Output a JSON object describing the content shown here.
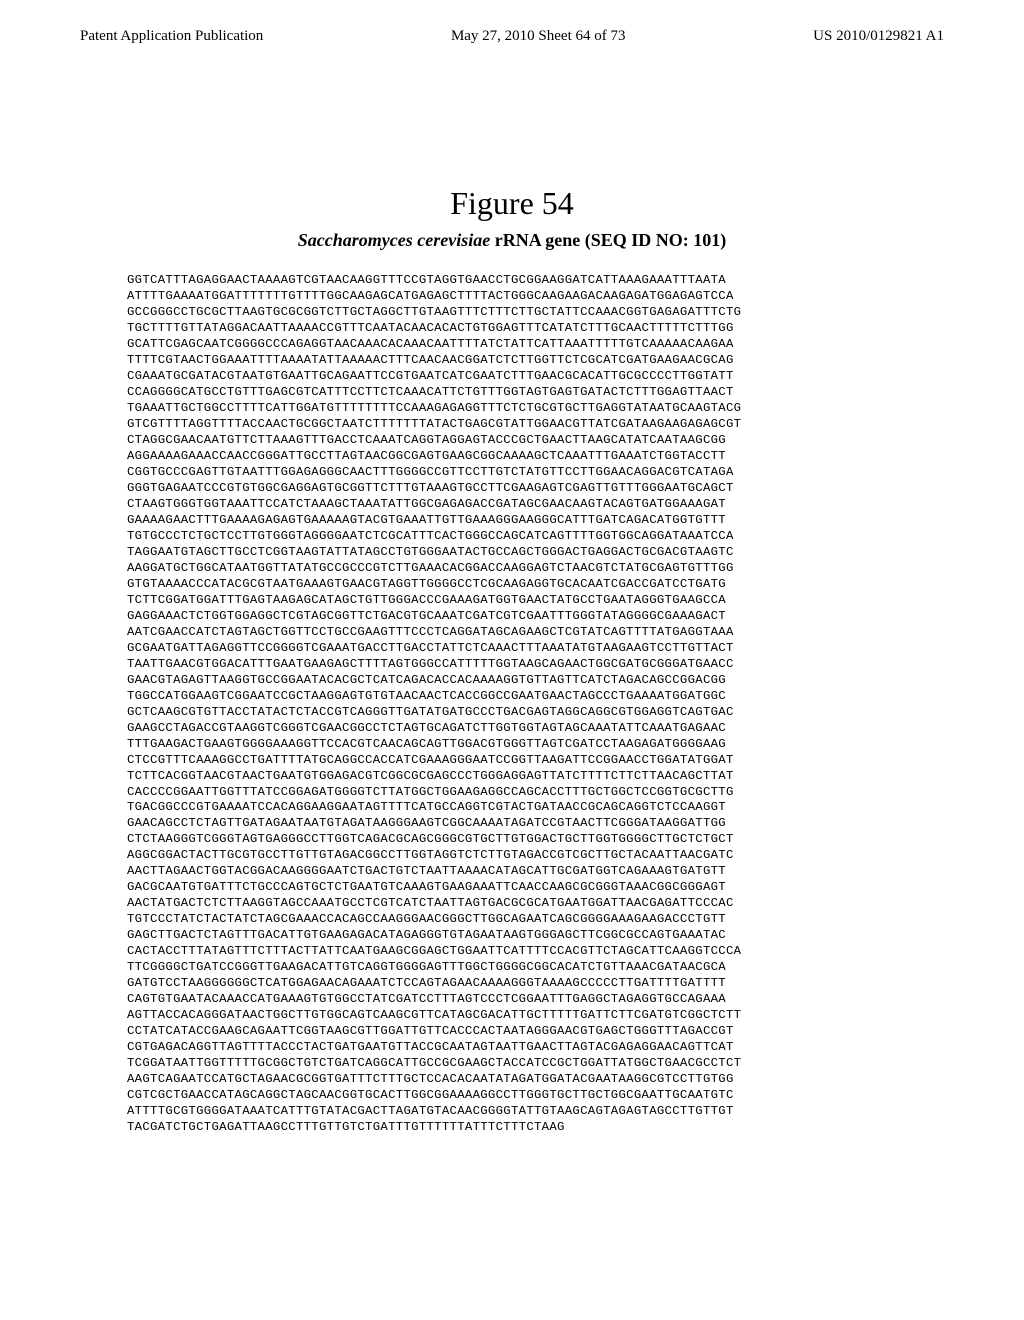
{
  "header": {
    "left": "Patent Application Publication",
    "center": "May 27, 2010  Sheet 64 of 73",
    "right": "US 2010/0129821 A1"
  },
  "figure": {
    "title": "Figure 54",
    "subtitle_italic": "Saccharomyces cerevisiae",
    "subtitle_rest": " rRNA gene (SEQ ID NO: 101)"
  },
  "sequence": "GGTCATTTAGAGGAACTAAAAGTCGTAACAAGGTTTCCGTAGGTGAACCTGCGGAAGGATCATTAAAGAAATTTAATA\nATTTTGAAAATGGATTTTTTTGTTTTGGCAAGAGCATGAGAGCTTTTACTGGGCAAGAAGACAAGAGATGGAGAGTCCA\nGCCGGGCCTGCGCTTAAGTGCGCGGTCTTGCTAGGCTTGTAAGTTTCTTTCTTGCTATTCCAAACGGTGAGAGATTTCTG\nTGCTTTTGTTATAGGACAATTAAAACCGTTTCAATACAACACACTGTGGAGTTTCATATCTTTGCAACTTTTTCTTTGG\nGCATTCGAGCAATCGGGGCCCAGAGGTAACAAACACAAACAATTTTATCTATTCATTAAATTTTTGTCAAAAACAAGAA\nTTTTCGTAACTGGAAATTTTAAAATATTAAAAACTTTCAACAACGGATCTCTTGGTTCTCGCATCGATGAAGAACGCAG\nCGAAATGCGATACGTAATGTGAATTGCAGAATTCCGTGAATCATCGAATCTTTGAACGCACATTGCGCCCCTTGGTATT\nCCAGGGGCATGCCTGTTTGAGCGTCATTTCCTTCTCAAACATTCTGTTTGGTAGTGAGTGATACTCTTTGGAGTTAACT\nTGAAATTGCTGGCCTTTTCATTGGATGTTTTTTTTCCAAAGAGAGGTTTCTCTGCGTGCTTGAGGTATAATGCAAGTACG\nGTCGTTTTAGGTTTTACCAACTGCGGCTAATCTTTTTTTATACTGAGCGTATTGGAACGTTATCGATAAGAAGAGAGCGT\nCTAGGCGAACAATGTTCTTAAAGTTTGACCTCAAATCAGGTAGGAGTACCCGCTGAACTTAAGCATATCAATAAGCGG\nAGGAAAAGAAACCAACCGGGATTGCCTTAGTAACGGCGAGTGAAGCGGCAAAAGCTCAAATTTGAAATCTGGTACCTT\nCGGTGCCCGAGTTGTAATTTGGAGAGGGCAACTTTGGGGCCGTTCCTTGTCTATGTTCCTTGGAACAGGACGTCATAGA\nGGGTGAGAATCCCGTGTGGCGAGGAGTGCGGTTCTTTGTAAAGTGCCTTCGAAGAGTCGAGTTGTTTGGGAATGCAGCT\nCTAAGTGGGTGGTAAATTCCATCTAAAGCTAAATATTGGCGAGAGACCGATAGCGAACAAGTACAGTGATGGAAAGAT\nGAAAAGAACTTTGAAAAGAGAGTGAAAAAGTACGTGAAATTGTTGAAAGGGAAGGGCATTTGATCAGACATGGTGTTT\nTGTGCCCTCTGCTCCTTGTGGGTAGGGGAATCTCGCATTTCACTGGGCCAGCATCAGTTTTGGTGGCAGGATAAATCCA\nTAGGAATGTAGCTTGCCTCGGTAAGTATTATAGCCTGTGGGAATACTGCCAGCTGGGACTGAGGACTGCGACGTAAGTC\nAAGGATGCTGGCATAATGGTTATATGCCGCCCGTCTTGAAACACGGACCAAGGAGTCTAACGTCTATGCGAGTGTTTGG\nGTGTAAAACCCATACGCGTAATGAAAGTGAACGTAGGTTGGGGCCTCGCAAGAGGTGCACAATCGACCGATCCTGATG\nTCTTCGGATGGATTTGAGTAAGAGCATAGCTGTTGGGACCCGAAAGATGGTGAACTATGCCTGAATAGGGTGAAGCCA\nGAGGAAACTCTGGTGGAGGCTCGTAGCGGTTCTGACGTGCAAATCGATCGTCGAATTTGGGTATAGGGGCGAAAGACT\nAATCGAACCATCTAGTAGCTGGTTCCTGCCGAAGTTTCCCTCAGGATAGCAGAAGCTCGTATCAGTTTTATGAGGTAAA\nGCGAATGATTAGAGGTTCCGGGGTCGAAATGACCTTGACCTATTCTCAAACTTTAAATATGTAAGAAGTCCTTGTTACT\nTAATTGAACGTGGACATTTGAATGAAGAGCTTTTAGTGGGCCATTTTTGGTAAGCAGAACTGGCGATGCGGGATGAACC\nGAACGTAGAGTTAAGGTGCCGGAATACACGCTCATCAGACACCACAAAAGGTGTTAGTTCATCTAGACAGCCGGACGG\nTGGCCATGGAAGTCGGAATCCGCTAAGGAGTGTGTAACAACTCACCGGCCGAATGAACTAGCCCTGAAAATGGATGGC\nGCTCAAGCGTGTTACCTATACTCTACCGTCAGGGTTGATATGATGCCCTGACGAGTAGGCAGGCGTGGAGGTCAGTGAC\nGAAGCCTAGACCGTAAGGTCGGGTCGAACGGCCTCTAGTGCAGATCTTGGTGGTAGTAGCAAATATTCAAATGAGAAC\nTTTGAAGACTGAAGTGGGGAAAGGTTCCACGTCAACAGCAGTTGGACGTGGGTTAGTCGATCCTAAGAGATGGGGAAG\nCTCCGTTTCAAAGGCCTGATTTTATGCAGGCCACCATCGAAAGGGAATCCGGTTAAGATTCCGGAACCTGGATATGGAT\nTCTTCACGGTAACGTAACTGAATGTGGAGACGTCGGCGCGAGCCCTGGGAGGAGTTATCTTTTCTTCTTAACAGCTTAT\nCACCCCGGAATTGGTTTATCCGGAGATGGGGTCTTATGGCTGGAAGAGGCCAGCACCTTTGCTGGCTCCGGTGCGCTTG\nTGACGGCCCGTGAAAATCCACAGGAAGGAATAGTTTTCATGCCAGGTCGTACTGATAACCGCAGCAGGTCTCCAAGGT\nGAACAGCCTCTAGTTGATAGAATAATGTAGATAAGGGAAGTCGGCAAAATAGATCCGTAACTTCGGGATAAGGATTGG\nCTCTAAGGGTCGGGTAGTGAGGGCCTTGGTCAGACGCAGCGGGCGTGCTTGTGGACTGCTTGGTGGGGCTTGCTCTGCT\nAGGCGGACTACTTGCGTGCCTTGTTGTAGACGGCCTTGGTAGGTCTCTTGTAGACCGTCGCTTGCTACAATTAACGATC\nAACTTAGAACTGGTACGGACAAGGGGAATCTGACTGTCTAATTAAAACATAGCATTGCGATGGTCAGAAAGTGATGTT\nGACGCAATGTGATTTCTGCCCAGTGCTCTGAATGTCAAAGTGAAGAAATTCAACCAAGCGCGGGTAAACGGCGGGAGT\nAACTATGACTCTCTTAAGGTAGCCAAATGCCTCGTCATCTAATTAGTGACGCGCATGAATGGATTAACGAGATTCCCAC\nTGTCCCTATCTACTATCTAGCGAAACCACAGCCAAGGGAACGGGCTTGGCAGAATCAGCGGGGAAAGAAGACCCTGTT\nGAGCTTGACTCTAGTTTGACATTGTGAAGAGACATAGAGGGTGTAGAATAAGTGGGAGCTTCGGCGCCAGTGAAATAC\nCACTACCTTTATAGTTTCTTTACTTATTCAATGAAGCGGAGCTGGAATTCATTTTCCACGTTCTAGCATTCAAGGTCCCA\nTTCGGGGCTGATCCGGGTTGAAGACATTGTCAGGTGGGGAGTTTGGCTGGGGCGGCACATCTGTTAAACGATAACGCA\nGATGTCCTAAGGGGGGCTCATGGAGAACAGAAATCTCCAGTAGAACAAAAGGGTAAAAGCCCCCTTGATTTTGATTTT\nCAGTGTGAATACAAACCATGAAAGTGTGGCCTATCGATCCTTTAGTCCCTCGGAATTTGAGGCTAGAGGTGCCAGAAA\nAGTTACCACAGGGATAACTGGCTTGTGGCAGTCAAGCGTTCATAGCGACATTGCTTTTTGATTCTTCGATGTCGGCTCTT\nCCTATCATACCGAAGCAGAATTCGGTAAGCGTTGGATTGTTCACCCACTAATAGGGAACGTGAGCTGGGTTTAGACCGT\nCGTGAGACAGGTTAGTTTTACCCTACTGATGAATGTTACCGCAATAGTAATTGAACTTAGTACGAGAGGAACAGTTCAT\nTCGGATAATTGGTTTTTGCGGCTGTCTGATCAGGCATTGCCGCGAAGCTACCATCCGCTGGATTATGGCTGAACGCCTCT\nAAGTCAGAATCCATGCTAGAACGCGGTGATTTCTTTGCTCCACACAATATAGATGGATACGAATAAGGCGTCCTTGTGG\nCGTCGCTGAACCATAGCAGGCTAGCAACGGTGCACTTGGCGGAAAAGGCCTTGGGTGCTTGCTGGCGAATTGCAATGTC\nATTTTGCGTGGGGATAAATCATTTGTATACGACTTAGATGTACAACGGGGTATTGTAAGCAGTAGAGTAGCCTTGTTGT\nTACGATCTGCTGAGATTAAGCCTTTGTTGTCTGATTTGTTTTTTATTTCTTTCTAAG"
}
